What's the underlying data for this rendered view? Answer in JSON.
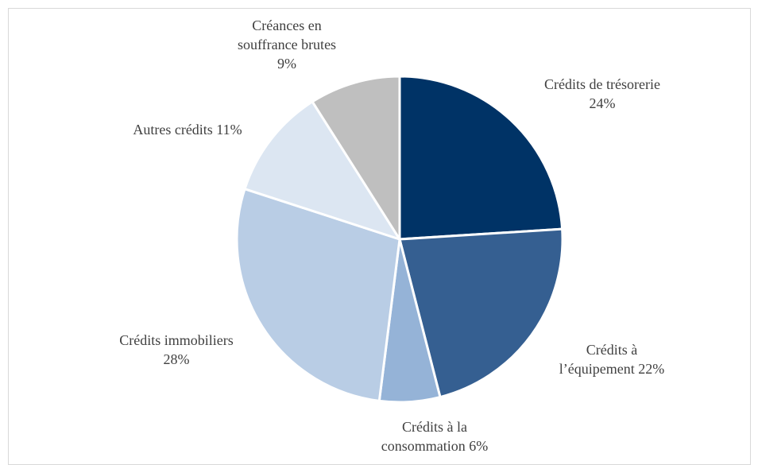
{
  "chart_data": {
    "type": "pie",
    "title": "",
    "start_angle_deg": 0,
    "direction": "clockwise",
    "slices": [
      {
        "name": "Crédits de trésorerie",
        "value": 24,
        "color": "#003366",
        "label_lines": [
          "Crédits de trésorerie",
          "24%"
        ]
      },
      {
        "name": "Crédits à l’équipement",
        "value": 22,
        "color": "#355f91",
        "label_lines": [
          "Crédits à",
          "l’équipement 22%"
        ]
      },
      {
        "name": "Crédits à la consommation",
        "value": 6,
        "color": "#95b3d7",
        "label_lines": [
          "Crédits à la",
          "consommation 6%"
        ]
      },
      {
        "name": "Crédits immobiliers",
        "value": 28,
        "color": "#b9cde5",
        "label_lines": [
          "Crédits immobiliers",
          "28%"
        ]
      },
      {
        "name": "Autres crédits",
        "value": 11,
        "color": "#dce6f2",
        "label_lines": [
          "Autres crédits 11%"
        ]
      },
      {
        "name": "Créances en souffrance brutes",
        "value": 9,
        "color": "#bfbfbf",
        "label_lines": [
          "Créances en",
          "souffrance brutes",
          "9%"
        ]
      }
    ]
  }
}
